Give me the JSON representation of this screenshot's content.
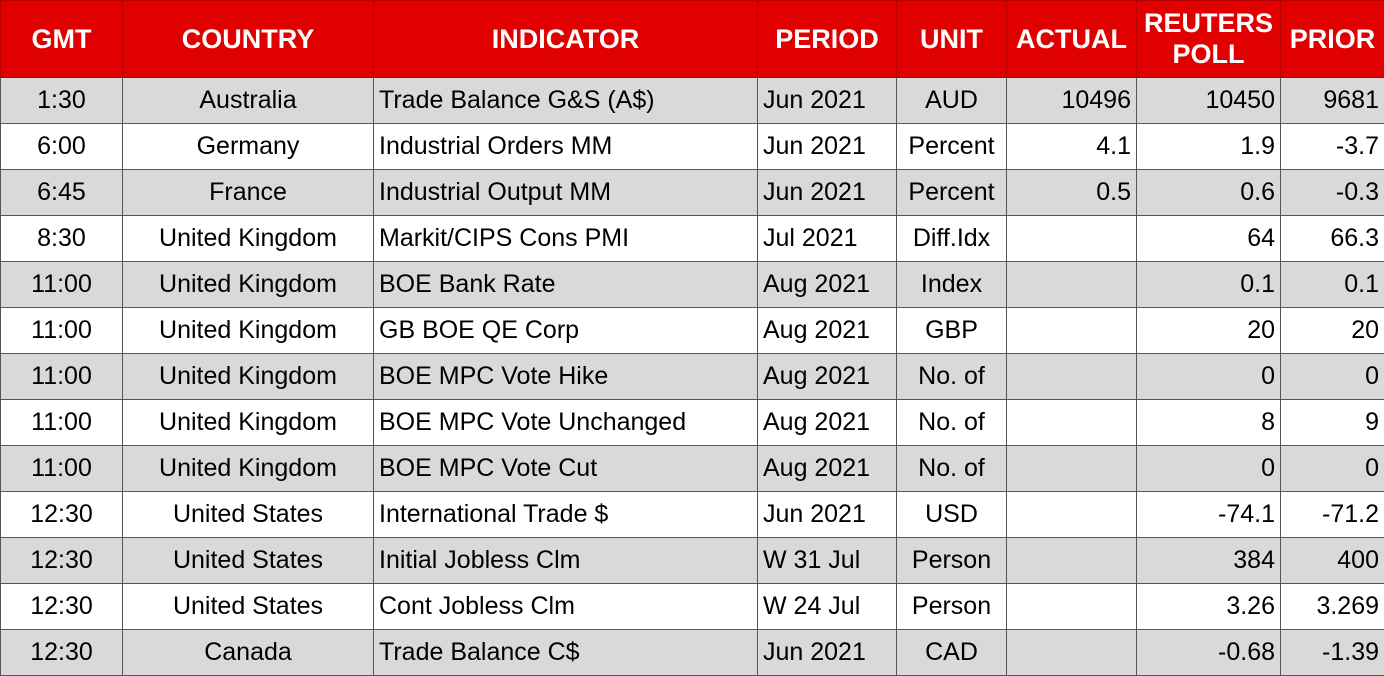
{
  "headers": [
    "GMT",
    "COUNTRY",
    "INDICATOR",
    "PERIOD",
    "UNIT",
    "ACTUAL",
    "REUTERS POLL",
    "PRIOR"
  ],
  "rows": [
    {
      "gmt": "1:30",
      "country": "Australia",
      "indicator": "Trade Balance G&S (A$)",
      "period": "Jun 2021",
      "unit": "AUD",
      "actual": "10496",
      "poll": "10450",
      "prior": "9681"
    },
    {
      "gmt": "6:00",
      "country": "Germany",
      "indicator": "Industrial Orders MM",
      "period": "Jun 2021",
      "unit": "Percent",
      "actual": "4.1",
      "poll": "1.9",
      "prior": "-3.7"
    },
    {
      "gmt": "6:45",
      "country": "France",
      "indicator": "Industrial Output MM",
      "period": "Jun 2021",
      "unit": "Percent",
      "actual": "0.5",
      "poll": "0.6",
      "prior": "-0.3"
    },
    {
      "gmt": "8:30",
      "country": "United Kingdom",
      "indicator": "Markit/CIPS Cons PMI",
      "period": "Jul 2021",
      "unit": "Diff.Idx",
      "actual": "",
      "poll": "64",
      "prior": "66.3"
    },
    {
      "gmt": "11:00",
      "country": "United Kingdom",
      "indicator": "BOE Bank Rate",
      "period": "Aug 2021",
      "unit": "Index",
      "actual": "",
      "poll": "0.1",
      "prior": "0.1"
    },
    {
      "gmt": "11:00",
      "country": "United Kingdom",
      "indicator": "GB BOE QE Corp",
      "period": "Aug 2021",
      "unit": "GBP",
      "actual": "",
      "poll": "20",
      "prior": "20"
    },
    {
      "gmt": "11:00",
      "country": "United Kingdom",
      "indicator": "BOE MPC Vote Hike",
      "period": "Aug 2021",
      "unit": "No. of",
      "actual": "",
      "poll": "0",
      "prior": "0"
    },
    {
      "gmt": "11:00",
      "country": "United Kingdom",
      "indicator": "BOE MPC Vote Unchanged",
      "period": "Aug 2021",
      "unit": "No. of",
      "actual": "",
      "poll": "8",
      "prior": "9"
    },
    {
      "gmt": "11:00",
      "country": "United Kingdom",
      "indicator": "BOE MPC Vote Cut",
      "period": "Aug 2021",
      "unit": "No. of",
      "actual": "",
      "poll": "0",
      "prior": "0"
    },
    {
      "gmt": "12:30",
      "country": "United States",
      "indicator": "International Trade $",
      "period": "Jun 2021",
      "unit": "USD",
      "actual": "",
      "poll": "-74.1",
      "prior": "-71.2"
    },
    {
      "gmt": "12:30",
      "country": "United States",
      "indicator": "Initial Jobless Clm",
      "period": "W 31 Jul",
      "unit": "Person",
      "actual": "",
      "poll": "384",
      "prior": "400"
    },
    {
      "gmt": "12:30",
      "country": "United States",
      "indicator": "Cont Jobless Clm",
      "period": "W 24 Jul",
      "unit": "Person",
      "actual": "",
      "poll": "3.26",
      "prior": "3.269"
    },
    {
      "gmt": "12:30",
      "country": "Canada",
      "indicator": "Trade Balance C$",
      "period": "Jun 2021",
      "unit": "CAD",
      "actual": "",
      "poll": "-0.68",
      "prior": "-1.39"
    }
  ],
  "colors": {
    "header_bg": "#e00000",
    "header_text": "#ffffff",
    "row_shade": "#d9d9d9",
    "row_plain": "#ffffff"
  }
}
